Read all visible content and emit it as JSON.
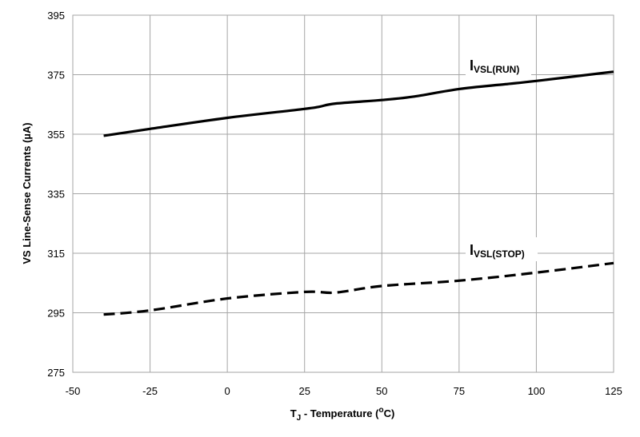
{
  "chart_data": {
    "type": "line",
    "xlabel": {
      "main": "T",
      "sub": "J",
      "rest": " - Temperature (",
      "sup": "o",
      "end": "C)"
    },
    "ylabel": "VS Line-Sense Currents (µA)",
    "xlim": [
      -50,
      125
    ],
    "ylim": [
      275,
      395
    ],
    "xticks": [
      -50,
      -25,
      0,
      25,
      50,
      75,
      100,
      125
    ],
    "yticks": [
      275,
      295,
      315,
      335,
      355,
      375,
      395
    ],
    "grid": true,
    "series": [
      {
        "name": "RUN",
        "label_main": "I",
        "label_sub": "VSL(RUN)",
        "style": "solid",
        "color": "#000000",
        "x": [
          -40,
          -25,
          0,
          25,
          30,
          35,
          50,
          60,
          75,
          90,
          100,
          125
        ],
        "y": [
          354.5,
          356.8,
          360.5,
          363.5,
          364.3,
          365.3,
          366.5,
          367.6,
          370.2,
          371.8,
          372.9,
          376.0
        ]
      },
      {
        "name": "STOP",
        "label_main": "I",
        "label_sub": "VSL(STOP)",
        "style": "dashed",
        "color": "#000000",
        "x": [
          -40,
          -25,
          0,
          25,
          35,
          50,
          75,
          100,
          125
        ],
        "y": [
          294.4,
          295.8,
          299.8,
          302.0,
          301.8,
          304.0,
          305.8,
          308.5,
          311.7
        ]
      }
    ]
  }
}
